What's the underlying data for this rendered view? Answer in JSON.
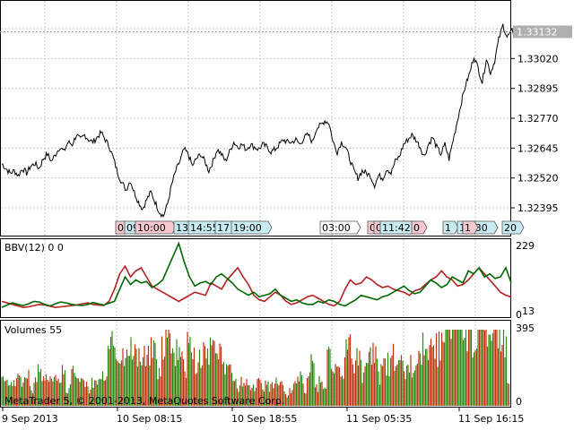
{
  "window": {
    "copyright": "MetaTrader 5, © 2001-2013, MetaQuotes Software Corp."
  },
  "price_panel": {
    "price_ticks": [
      "1.33145",
      "1.33020",
      "1.32895",
      "1.32770",
      "1.32645",
      "1.32520",
      "1.32395"
    ],
    "current_price": "1.33132",
    "session_markers": [
      {
        "label": "0",
        "color": "#f7c8d0"
      },
      {
        "label": "09",
        "color": "#c8ecf2"
      },
      {
        "label": "10:00",
        "color": "#f7c8d0"
      },
      {
        "label": "13",
        "color": "#c8ecf2"
      },
      {
        "label": "14:55",
        "color": "#c8ecf2"
      },
      {
        "label": "17",
        "color": "#c8ecf2"
      },
      {
        "label": "19:00",
        "color": "#c8ecf2"
      },
      {
        "label": "03:00",
        "color": "#ffffff"
      },
      {
        "label": "0",
        "color": "#f7c8d0"
      },
      {
        "label": "08:45",
        "color": "#f7c8d0"
      },
      {
        "label": "11:42",
        "color": "#c8ecf2"
      },
      {
        "label": "0",
        "color": "#f7c8d0"
      },
      {
        "label": "1",
        "color": "#c8ecf2"
      },
      {
        "label": "16:30",
        "color": "#c8ecf2"
      },
      {
        "label": "1",
        "color": "#f7c8d0"
      },
      {
        "label": "20",
        "color": "#c8ecf2"
      }
    ]
  },
  "bbv_panel": {
    "title": "BBV(12) 0 0",
    "scale_top": "229",
    "scale_bottom": "0",
    "scale_bottom2": "13",
    "series_colors": {
      "green": "#006600",
      "red": "#b22222"
    }
  },
  "volume_panel": {
    "title": "Volumes 55",
    "scale_top": "395",
    "scale_bottom": "0",
    "colors": {
      "up": "#2d8a12",
      "down": "#c0330f"
    }
  },
  "time_axis": {
    "labels": [
      "9 Sep 2013",
      "10 Sep 08:15",
      "10 Sep 18:55",
      "11 Sep 05:35",
      "11 Sep 16:15"
    ]
  },
  "chart_data": {
    "type": "line",
    "symbol_timeframe": "",
    "price_axis": {
      "ticks": [
        1.33145,
        1.3302,
        1.32895,
        1.3277,
        1.32645,
        1.3252,
        1.32395
      ],
      "current": 1.33132
    },
    "price_series": [
      1.3258,
      1.3256,
      1.3254,
      1.3255,
      1.3253,
      1.3256,
      1.3254,
      1.3257,
      1.3258,
      1.3256,
      1.326,
      1.3262,
      1.3259,
      1.3262,
      1.3265,
      1.3263,
      1.3267,
      1.3266,
      1.327,
      1.3268,
      1.327,
      1.3268,
      1.3267,
      1.3269,
      1.3271,
      1.3268,
      1.3265,
      1.326,
      1.3254,
      1.325,
      1.3247,
      1.3251,
      1.3246,
      1.3242,
      1.3239,
      1.3243,
      1.3246,
      1.3242,
      1.3238,
      1.3236,
      1.3241,
      1.3249,
      1.3255,
      1.3259,
      1.3264,
      1.3262,
      1.3257,
      1.326,
      1.3262,
      1.3259,
      1.3255,
      1.3259,
      1.3264,
      1.3262,
      1.3259,
      1.3263,
      1.3267,
      1.3265,
      1.3266,
      1.3264,
      1.3266,
      1.3265,
      1.3264,
      1.3266,
      1.3265,
      1.3263,
      1.3264,
      1.3266,
      1.3268,
      1.3267,
      1.3267,
      1.3268,
      1.3266,
      1.3269,
      1.327,
      1.3267,
      1.3273,
      1.3274,
      1.3276,
      1.3275,
      1.3267,
      1.3263,
      1.3267,
      1.3265,
      1.326,
      1.3255,
      1.3252,
      1.3255,
      1.3254,
      1.3253,
      1.3249,
      1.3253,
      1.3252,
      1.3256,
      1.3254,
      1.3259,
      1.3261,
      1.3266,
      1.3268,
      1.327,
      1.3268,
      1.3265,
      1.3261,
      1.3266,
      1.3269,
      1.3265,
      1.3262,
      1.3266,
      1.326,
      1.3268,
      1.3276,
      1.3284,
      1.3291,
      1.3296,
      1.3303,
      1.3298,
      1.3292,
      1.3302,
      1.3296,
      1.3301,
      1.331,
      1.3316,
      1.3311,
      1.3313
    ],
    "bbv_green": [
      20,
      28,
      35,
      30,
      26,
      32,
      40,
      38,
      30,
      25,
      32,
      38,
      35,
      30,
      28,
      26,
      30,
      36,
      32,
      28,
      34,
      40,
      80,
      120,
      95,
      110,
      100,
      105,
      85,
      95,
      110,
      150,
      190,
      230,
      170,
      120,
      90,
      100,
      105,
      95,
      120,
      130,
      115,
      100,
      80,
      70,
      60,
      70,
      55,
      60,
      65,
      80,
      60,
      50,
      40,
      45,
      35,
      30,
      30,
      40,
      35,
      45,
      40,
      30,
      25,
      35,
      45,
      60,
      55,
      50,
      45,
      55,
      60,
      70,
      80,
      90,
      75,
      65,
      70,
      90,
      110,
      100,
      85,
      95,
      120,
      110,
      100,
      140,
      130,
      150,
      120,
      130,
      115,
      120,
      150,
      100
    ],
    "bbv_red": [
      40,
      35,
      30,
      25,
      20,
      22,
      26,
      30,
      28,
      24,
      20,
      22,
      24,
      26,
      28,
      32,
      35,
      30,
      28,
      26,
      40,
      80,
      130,
      155,
      120,
      140,
      150,
      120,
      90,
      80,
      70,
      60,
      50,
      40,
      50,
      60,
      70,
      65,
      60,
      100,
      90,
      80,
      110,
      130,
      150,
      120,
      95,
      60,
      45,
      40,
      55,
      70,
      60,
      40,
      30,
      35,
      45,
      55,
      60,
      50,
      40,
      30,
      25,
      40,
      80,
      110,
      95,
      100,
      120,
      110,
      95,
      85,
      90,
      80,
      75,
      70,
      60,
      75,
      80,
      95,
      110,
      120,
      140,
      120,
      110,
      90,
      95,
      110,
      130,
      150,
      130,
      110,
      90,
      70,
      60,
      55
    ]
  }
}
